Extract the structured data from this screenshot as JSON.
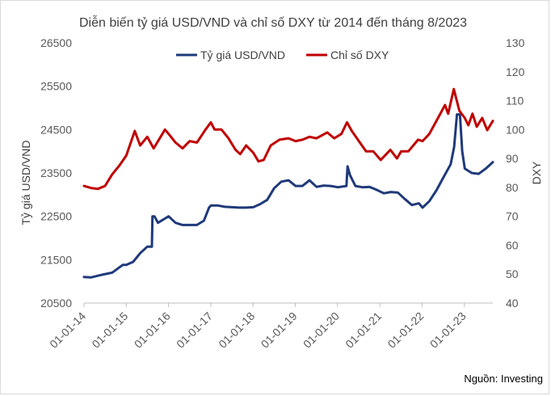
{
  "chart_data": {
    "type": "line",
    "title": "Diễn biến tỷ giá USD/VND và chỉ số DXY từ 2014 đến tháng 8/2023",
    "ylabel_left": "Tỷ giá USD/VND",
    "ylabel_right": "DXY",
    "source": "Nguồn: Investing",
    "legend_position": "top-center",
    "grid": false,
    "x_tick_labels": [
      "01-01-14",
      "01-01-15",
      "01-01-16",
      "01-01-17",
      "01-01-18",
      "01-01-19",
      "01-01-20",
      "01-01-21",
      "01-01-22",
      "01-01-23"
    ],
    "x_range": [
      "2014-01-01",
      "2023-08-31"
    ],
    "left_axis": {
      "min": 20500,
      "max": 26500,
      "ticks": [
        20500,
        21500,
        22500,
        23500,
        24500,
        25500,
        26500
      ]
    },
    "right_axis": {
      "min": 40,
      "max": 130,
      "ticks": [
        40,
        50,
        60,
        70,
        80,
        90,
        100,
        110,
        120,
        130
      ]
    },
    "series": [
      {
        "name": "Tỷ giá USD/VND",
        "axis": "left",
        "color": "#1f3a7a",
        "points": [
          [
            "2014-01-01",
            21100
          ],
          [
            "2014-03-01",
            21090
          ],
          [
            "2014-06-01",
            21150
          ],
          [
            "2014-09-01",
            21200
          ],
          [
            "2014-12-01",
            21380
          ],
          [
            "2015-01-01",
            21380
          ],
          [
            "2015-03-01",
            21450
          ],
          [
            "2015-05-01",
            21650
          ],
          [
            "2015-07-01",
            21800
          ],
          [
            "2015-08-10",
            21800
          ],
          [
            "2015-08-15",
            22500
          ],
          [
            "2015-09-01",
            22500
          ],
          [
            "2015-10-01",
            22350
          ],
          [
            "2015-12-01",
            22450
          ],
          [
            "2016-01-01",
            22500
          ],
          [
            "2016-03-01",
            22350
          ],
          [
            "2016-05-01",
            22300
          ],
          [
            "2016-07-01",
            22300
          ],
          [
            "2016-09-01",
            22300
          ],
          [
            "2016-11-01",
            22400
          ],
          [
            "2016-12-15",
            22700
          ],
          [
            "2017-01-01",
            22750
          ],
          [
            "2017-03-01",
            22750
          ],
          [
            "2017-05-01",
            22720
          ],
          [
            "2017-07-01",
            22710
          ],
          [
            "2017-09-01",
            22700
          ],
          [
            "2017-11-01",
            22700
          ],
          [
            "2018-01-01",
            22710
          ],
          [
            "2018-03-01",
            22780
          ],
          [
            "2018-05-01",
            22880
          ],
          [
            "2018-07-01",
            23150
          ],
          [
            "2018-09-01",
            23300
          ],
          [
            "2018-11-01",
            23330
          ],
          [
            "2019-01-01",
            23200
          ],
          [
            "2019-03-01",
            23200
          ],
          [
            "2019-05-01",
            23330
          ],
          [
            "2019-07-01",
            23180
          ],
          [
            "2019-09-01",
            23210
          ],
          [
            "2019-11-01",
            23200
          ],
          [
            "2020-01-01",
            23170
          ],
          [
            "2020-03-15",
            23200
          ],
          [
            "2020-03-25",
            23650
          ],
          [
            "2020-04-15",
            23450
          ],
          [
            "2020-06-01",
            23200
          ],
          [
            "2020-08-01",
            23170
          ],
          [
            "2020-10-01",
            23180
          ],
          [
            "2020-12-01",
            23110
          ],
          [
            "2021-02-01",
            23030
          ],
          [
            "2021-04-01",
            23060
          ],
          [
            "2021-06-01",
            23050
          ],
          [
            "2021-08-01",
            22900
          ],
          [
            "2021-10-01",
            22760
          ],
          [
            "2021-12-01",
            22800
          ],
          [
            "2022-01-01",
            22700
          ],
          [
            "2022-03-01",
            22850
          ],
          [
            "2022-05-01",
            23100
          ],
          [
            "2022-07-01",
            23400
          ],
          [
            "2022-09-01",
            23700
          ],
          [
            "2022-10-01",
            24100
          ],
          [
            "2022-10-25",
            24850
          ],
          [
            "2022-11-20",
            24850
          ],
          [
            "2022-12-10",
            24000
          ],
          [
            "2023-01-01",
            23600
          ],
          [
            "2023-03-01",
            23500
          ],
          [
            "2023-05-01",
            23480
          ],
          [
            "2023-07-01",
            23600
          ],
          [
            "2023-08-31",
            23750
          ]
        ]
      },
      {
        "name": "Chỉ số DXY",
        "axis": "right",
        "color": "#c00000",
        "points": [
          [
            "2014-01-01",
            80.5
          ],
          [
            "2014-03-01",
            79.8
          ],
          [
            "2014-05-01",
            79.5
          ],
          [
            "2014-07-01",
            80.5
          ],
          [
            "2014-09-01",
            84.5
          ],
          [
            "2014-11-01",
            87.5
          ],
          [
            "2015-01-01",
            91.0
          ],
          [
            "2015-03-15",
            99.5
          ],
          [
            "2015-05-01",
            94.5
          ],
          [
            "2015-07-01",
            97.5
          ],
          [
            "2015-08-25",
            93.5
          ],
          [
            "2015-12-01",
            100.0
          ],
          [
            "2016-01-01",
            98.5
          ],
          [
            "2016-03-01",
            95.5
          ],
          [
            "2016-05-01",
            93.5
          ],
          [
            "2016-07-01",
            96.0
          ],
          [
            "2016-09-01",
            95.5
          ],
          [
            "2016-11-15",
            100.0
          ],
          [
            "2016-12-31",
            102.5
          ],
          [
            "2017-02-01",
            100.0
          ],
          [
            "2017-04-01",
            100.0
          ],
          [
            "2017-06-01",
            97.0
          ],
          [
            "2017-08-01",
            93.0
          ],
          [
            "2017-09-10",
            91.5
          ],
          [
            "2017-11-01",
            94.5
          ],
          [
            "2018-01-01",
            92.0
          ],
          [
            "2018-02-15",
            89.0
          ],
          [
            "2018-04-01",
            89.5
          ],
          [
            "2018-06-01",
            94.5
          ],
          [
            "2018-08-15",
            96.5
          ],
          [
            "2018-11-01",
            97.0
          ],
          [
            "2019-01-01",
            96.0
          ],
          [
            "2019-03-01",
            96.5
          ],
          [
            "2019-05-01",
            97.5
          ],
          [
            "2019-07-01",
            97.0
          ],
          [
            "2019-10-01",
            99.0
          ],
          [
            "2019-12-01",
            97.0
          ],
          [
            "2020-02-01",
            98.5
          ],
          [
            "2020-03-20",
            102.5
          ],
          [
            "2020-05-01",
            99.5
          ],
          [
            "2020-07-01",
            96.0
          ],
          [
            "2020-09-01",
            92.5
          ],
          [
            "2020-11-01",
            92.5
          ],
          [
            "2021-01-05",
            89.5
          ],
          [
            "2021-03-30",
            93.0
          ],
          [
            "2021-05-25",
            90.0
          ],
          [
            "2021-07-01",
            92.5
          ],
          [
            "2021-09-01",
            92.5
          ],
          [
            "2021-11-24",
            96.5
          ],
          [
            "2022-01-01",
            96.0
          ],
          [
            "2022-03-01",
            98.5
          ],
          [
            "2022-05-01",
            103.0
          ],
          [
            "2022-07-14",
            108.5
          ],
          [
            "2022-08-10",
            105.5
          ],
          [
            "2022-09-28",
            114.0
          ],
          [
            "2022-11-15",
            106.5
          ],
          [
            "2023-01-01",
            104.0
          ],
          [
            "2023-02-01",
            101.5
          ],
          [
            "2023-03-08",
            105.5
          ],
          [
            "2023-04-14",
            101.0
          ],
          [
            "2023-05-31",
            104.0
          ],
          [
            "2023-07-14",
            99.8
          ],
          [
            "2023-08-31",
            103.0
          ]
        ]
      }
    ]
  }
}
